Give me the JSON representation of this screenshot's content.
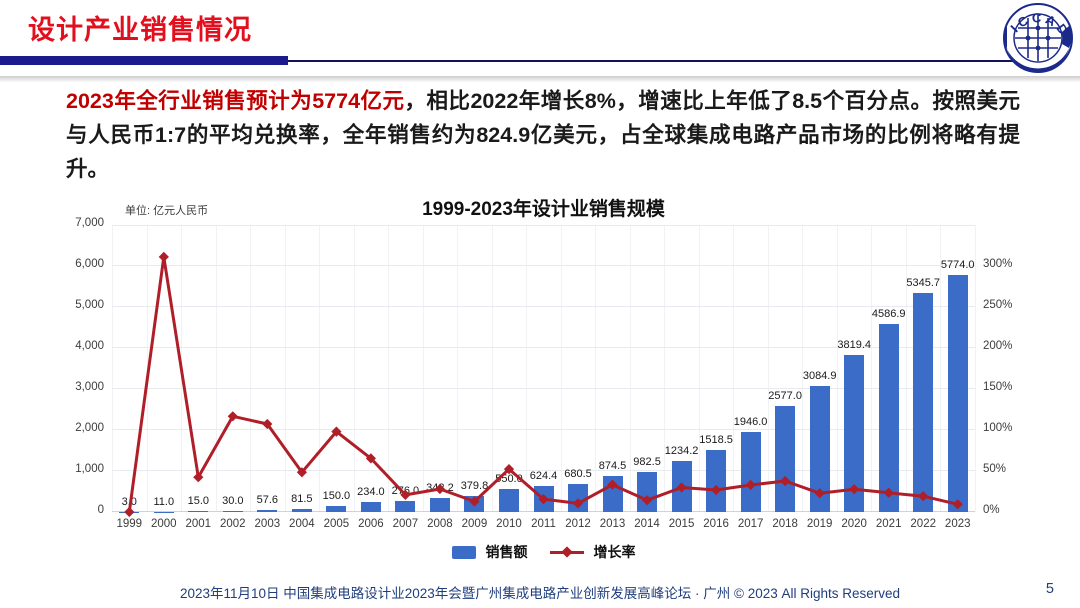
{
  "header": {
    "title": "设计产业销售情况",
    "logo_text": "ICCAD"
  },
  "intro": {
    "highlight": "2023年全行业销售预计为5774亿元",
    "rest": "，相比2022年增长8%，增速比上年低了8.5个百分点。按照美元与人民币1:7的平均兑换率，全年销售约为824.9亿美元，占全球集成电路产品市场的比例将略有提升。"
  },
  "chart_data": {
    "type": "bar",
    "subtype": "bar+line combo",
    "title": "1999-2023年设计业销售规模",
    "unit_label": "单位: 亿元人民币",
    "categories": [
      "1999",
      "2000",
      "2001",
      "2002",
      "2003",
      "2004",
      "2005",
      "2006",
      "2007",
      "2008",
      "2009",
      "2010",
      "2011",
      "2012",
      "2013",
      "2014",
      "2015",
      "2016",
      "2017",
      "2018",
      "2019",
      "2020",
      "2021",
      "2022",
      "2023"
    ],
    "series": [
      {
        "name": "销售额",
        "type": "bar",
        "axis": "left",
        "color": "#3A6CC8",
        "values": [
          3.0,
          11.0,
          15.0,
          30.0,
          57.6,
          81.5,
          150.0,
          234.0,
          276.0,
          342.2,
          379.8,
          550.0,
          624.4,
          680.5,
          874.5,
          982.5,
          1234.2,
          1518.5,
          1946.0,
          2577.0,
          3084.9,
          3819.4,
          4586.9,
          5345.7,
          5774.0
        ],
        "labels": [
          "3.0",
          "11.0",
          "15.0",
          "30.0",
          "57.6",
          "81.5",
          "150.0",
          "234.0",
          "276.0",
          "342.2",
          "379.8",
          "550.0",
          "624.4",
          "680.5",
          "874.5",
          "982.5",
          "1234.2",
          "1518.5",
          "1946.0",
          "2577.0",
          "3084.9",
          "3819.4",
          "4586.9",
          "5345.7",
          "5774.0"
        ]
      },
      {
        "name": "增长率",
        "type": "line",
        "axis": "right",
        "color": "#B01E28",
        "values_percent": [
          0,
          266.7,
          36.4,
          100.0,
          92.0,
          41.5,
          84.0,
          56.0,
          17.9,
          24.0,
          11.0,
          44.8,
          13.5,
          9.0,
          28.5,
          12.3,
          25.6,
          23.0,
          28.2,
          32.4,
          19.7,
          23.8,
          20.1,
          16.5,
          8.0
        ]
      }
    ],
    "left_axis": {
      "min": 0,
      "max": 7000,
      "step": 1000,
      "ticks": [
        "0",
        "1,000",
        "2,000",
        "3,000",
        "4,000",
        "5,000",
        "6,000",
        "7,000"
      ]
    },
    "right_axis": {
      "min": 0,
      "max": 300,
      "step": 50,
      "ticks": [
        "0%",
        "50%",
        "100%",
        "150%",
        "200%",
        "250%",
        "300%"
      ]
    },
    "grid": true,
    "legend_position": "bottom"
  },
  "footer": {
    "text": "2023年11月10日 中国集成电路设计业2023年会暨广州集成电路产业创新发展高峰论坛 · 广州 © 2023 All Rights Reserved",
    "page_number": "5"
  }
}
